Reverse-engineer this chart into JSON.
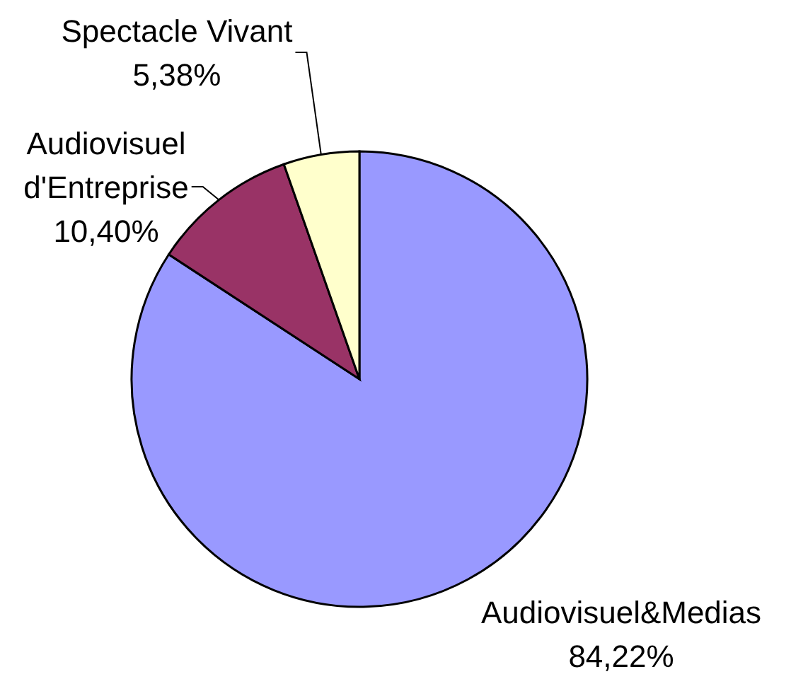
{
  "chart_data": {
    "type": "pie",
    "categories": [
      "Audiovisuel&Medias",
      "Audiovisuel d'Entreprise",
      "Spectacle Vivant"
    ],
    "values": [
      84.22,
      10.4,
      5.38
    ],
    "colors": [
      "#9999ff",
      "#993366",
      "#ffffcc"
    ],
    "value_labels": [
      "84,22%",
      "10,40%",
      "5,38%"
    ]
  }
}
